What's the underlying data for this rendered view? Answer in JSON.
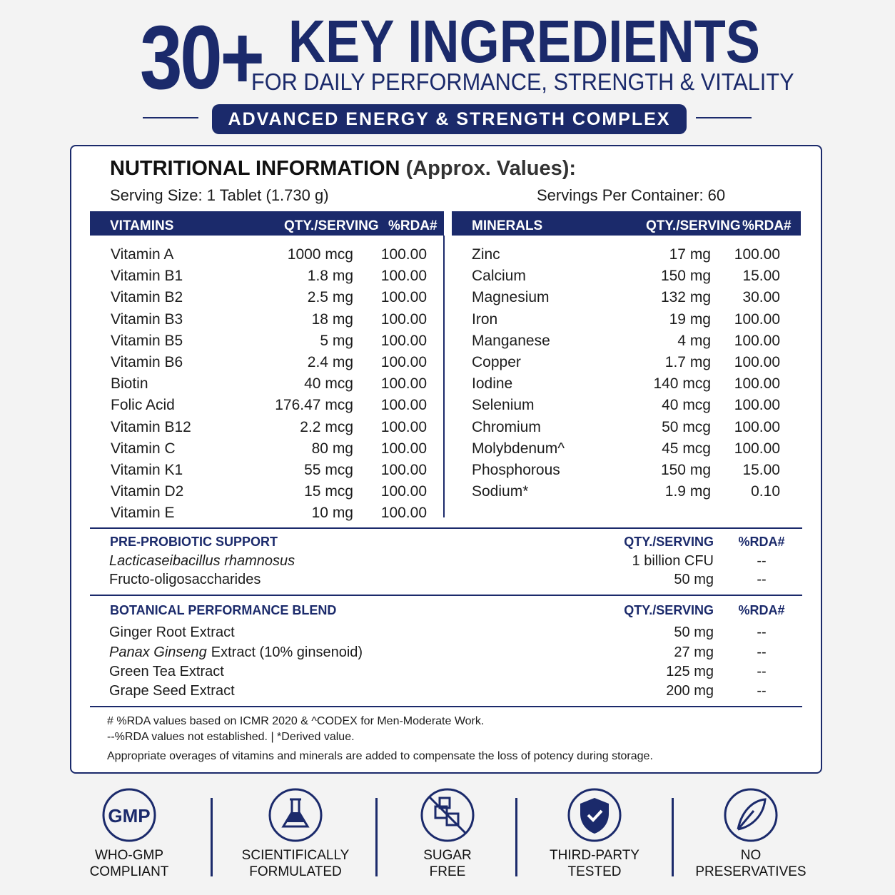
{
  "header": {
    "big": "30+",
    "title": "KEY INGREDIENTS",
    "subtitle": "FOR DAILY PERFORMANCE, STRENGTH & VITALITY",
    "banner": "ADVANCED ENERGY & STRENGTH COMPLEX"
  },
  "panel": {
    "title": "NUTRITIONAL INFORMATION",
    "title_note": "(Approx. Values):",
    "serving_size": "Serving Size: 1 Tablet (1.730 g)",
    "servings_per_container": "Servings Per Container: 60"
  },
  "vitamins": {
    "headers": [
      "VITAMINS",
      "QTY./SERVING",
      "%RDA#"
    ],
    "rows": [
      [
        "Vitamin A",
        "1000 mcg",
        "100.00"
      ],
      [
        "Vitamin B1",
        "1.8 mg",
        "100.00"
      ],
      [
        "Vitamin B2",
        "2.5 mg",
        "100.00"
      ],
      [
        "Vitamin B3",
        "18 mg",
        "100.00"
      ],
      [
        "Vitamin B5",
        "5 mg",
        "100.00"
      ],
      [
        "Vitamin B6",
        "2.4 mg",
        "100.00"
      ],
      [
        "Biotin",
        "40 mcg",
        "100.00"
      ],
      [
        "Folic Acid",
        "176.47 mcg",
        "100.00"
      ],
      [
        "Vitamin B12",
        "2.2 mcg",
        "100.00"
      ],
      [
        "Vitamin C",
        "80 mg",
        "100.00"
      ],
      [
        "Vitamin K1",
        "55 mcg",
        "100.00"
      ],
      [
        "Vitamin D2",
        "15 mcg",
        "100.00"
      ],
      [
        "Vitamin E",
        "10 mg",
        "100.00"
      ]
    ]
  },
  "minerals": {
    "headers": [
      "MINERALS",
      "QTY./SERVING",
      "%RDA#"
    ],
    "rows": [
      [
        "Zinc",
        "17 mg",
        "100.00"
      ],
      [
        "Calcium",
        "150 mg",
        "15.00"
      ],
      [
        "Magnesium",
        "132 mg",
        "30.00"
      ],
      [
        "Iron",
        "19 mg",
        "100.00"
      ],
      [
        "Manganese",
        "4 mg",
        "100.00"
      ],
      [
        "Copper",
        "1.7 mg",
        "100.00"
      ],
      [
        "Iodine",
        "140 mcg",
        "100.00"
      ],
      [
        "Selenium",
        "40 mcg",
        "100.00"
      ],
      [
        "Chromium",
        "50 mcg",
        "100.00"
      ],
      [
        "Molybdenum^",
        "45 mcg",
        "100.00"
      ],
      [
        "Phosphorous",
        "150 mg",
        "15.00"
      ],
      [
        "Sodium*",
        "1.9 mg",
        "0.10"
      ]
    ]
  },
  "probiotic": {
    "headers": [
      "PRE-PROBIOTIC SUPPORT",
      "QTY./SERVING",
      "%RDA#"
    ],
    "rows": [
      {
        "name_italic": "Lacticaseibacillus rhamnosus",
        "qty": "1 billion CFU",
        "rda": "--"
      },
      {
        "name": "Fructo-oligosaccharides",
        "qty": "50 mg",
        "rda": "--"
      }
    ]
  },
  "botanical": {
    "headers": [
      "BOTANICAL PERFORMANCE BLEND",
      "QTY./SERVING",
      "%RDA#"
    ],
    "rows": [
      {
        "name": "Ginger Root Extract",
        "qty": "50 mg",
        "rda": "--"
      },
      {
        "name_italic": "Panax Ginseng",
        "name": "Extract (10% ginsenoid)",
        "qty": "27 mg",
        "rda": "--"
      },
      {
        "name": "Green Tea Extract",
        "qty": "125 mg",
        "rda": "--"
      },
      {
        "name": "Grape Seed Extract",
        "qty": "200 mg",
        "rda": "--"
      }
    ]
  },
  "footnotes": [
    "# %RDA values based on ICMR 2020 & ^CODEX for Men-Moderate Work.",
    "--%RDA values not established.  | *Derived value.",
    "Appropriate overages of vitamins and minerals are added to compensate the loss of potency during storage."
  ],
  "badges": [
    {
      "icon_text": "GMP",
      "lines": [
        "WHO-GMP",
        "COMPLIANT"
      ]
    },
    {
      "lines": [
        "SCIENTIFICALLY",
        "FORMULATED"
      ]
    },
    {
      "lines": [
        "SUGAR",
        "FREE"
      ]
    },
    {
      "lines": [
        "THIRD-PARTY",
        "TESTED"
      ]
    },
    {
      "lines": [
        "NO",
        "PRESERVATIVES"
      ]
    }
  ]
}
